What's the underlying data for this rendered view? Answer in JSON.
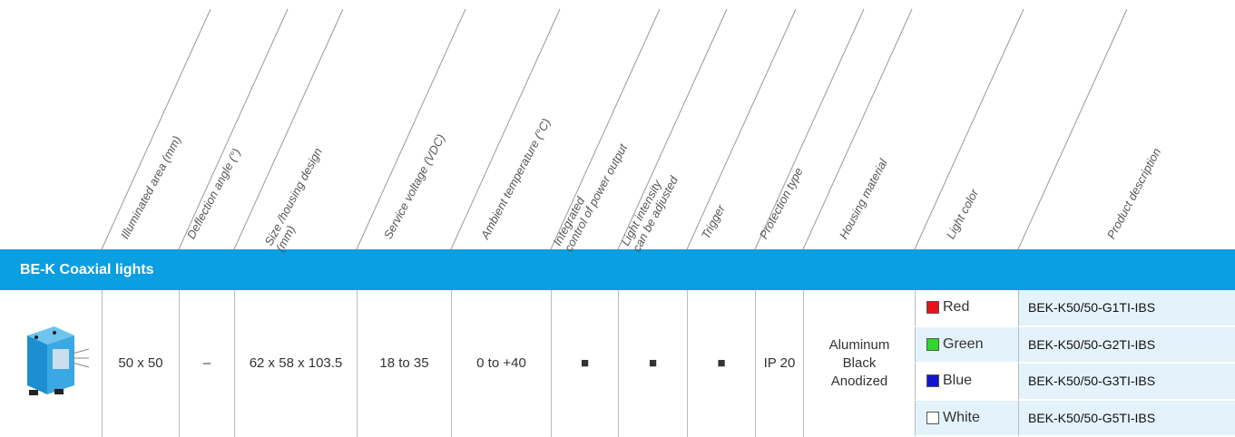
{
  "header": {
    "columns": [
      "Illuminated area (mm)",
      "Deflection angle (°)",
      "Size /housing design\n(mm)",
      "Service voltage (VDC)",
      "Ambient temperature (°C)",
      "Integrated\ncontrol of power output",
      "Light intensity\ncan be adjusted",
      "Trigger",
      "Protection type",
      "Housing material",
      "Light color",
      "Product description"
    ]
  },
  "section": {
    "title": "BE-K Coaxial lights"
  },
  "row": {
    "cells": [
      "50 x 50",
      "–",
      "62 x 58 x 103.5",
      "18 to 35",
      "0 to +40",
      "■",
      "■",
      "■",
      "IP 20",
      "Aluminum\nBlack\nAnodized"
    ],
    "variants": [
      {
        "color_name": "Red",
        "swatch": "#e8121a",
        "product": "BEK-K50/50-G1TI-IBS"
      },
      {
        "color_name": "Green",
        "swatch": "#2fd82f",
        "product": "BEK-K50/50-G2TI-IBS"
      },
      {
        "color_name": "Blue",
        "swatch": "#1515d0",
        "product": "BEK-K50/50-G3TI-IBS"
      },
      {
        "color_name": "White",
        "swatch": "#ffffff",
        "product": "BEK-K50/50-G5TI-IBS"
      }
    ]
  }
}
